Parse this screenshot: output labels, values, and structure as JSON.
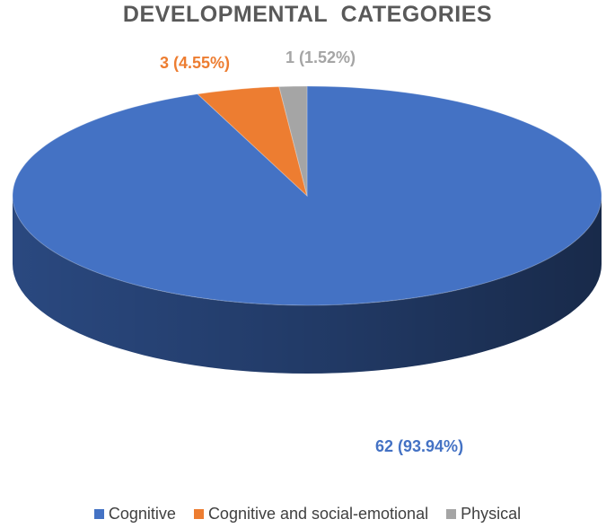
{
  "chart_data": {
    "type": "pie",
    "title": "DEVELOPMENTAL  CATEGORIES",
    "series": [
      {
        "name": "Cognitive",
        "value": 62,
        "percent": 93.94,
        "label": "62 (93.94%)",
        "color": "#4472C4",
        "side_color": "#2C4C86",
        "label_color": "#4472C4"
      },
      {
        "name": "Cognitive and social-emotional",
        "value": 3,
        "percent": 4.55,
        "label": "3 (4.55%)",
        "color": "#ED7D31",
        "side_color": "#A8541D",
        "label_color": "#ED7D31"
      },
      {
        "name": "Physical",
        "value": 1,
        "percent": 1.52,
        "label": "1 (1.52%)",
        "color": "#A5A5A5",
        "side_color": "#737373",
        "label_color": "#A5A5A5"
      }
    ],
    "legend_position": "bottom",
    "style": "3d"
  }
}
